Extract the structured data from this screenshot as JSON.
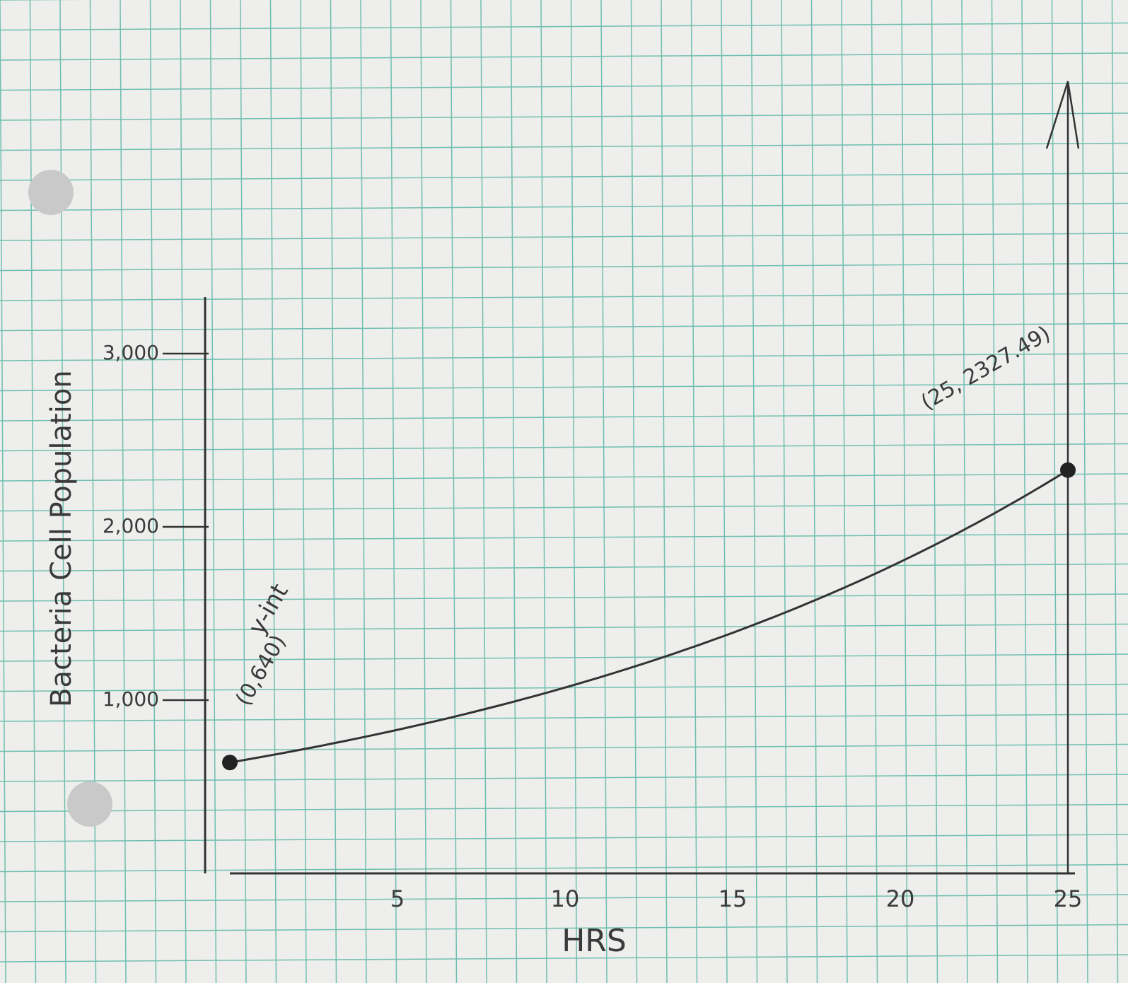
{
  "chart_data": {
    "type": "line",
    "title": "",
    "xlabel": "HRS",
    "ylabel": "Bacteria Cell Population",
    "xlim": [
      0,
      25
    ],
    "ylim": [
      0,
      3000
    ],
    "x_ticks": [
      "5",
      "10",
      "15",
      "20",
      "25"
    ],
    "y_ticks": [
      "1,000",
      "2,000",
      "3,000"
    ],
    "grid": true,
    "series": [
      {
        "curve": "exponential",
        "points": [
          {
            "x": 0,
            "y": 640
          },
          {
            "x": 25,
            "y": 2327.49
          }
        ]
      }
    ],
    "annotations": {
      "y_intercept_label": "y-int",
      "y_intercept_point": "(0,640)",
      "end_point": "(25, 2327.49)"
    },
    "colors": {
      "paper": "#eeeeec",
      "grid": "#6fbfb0",
      "pencil": "#333333"
    }
  }
}
